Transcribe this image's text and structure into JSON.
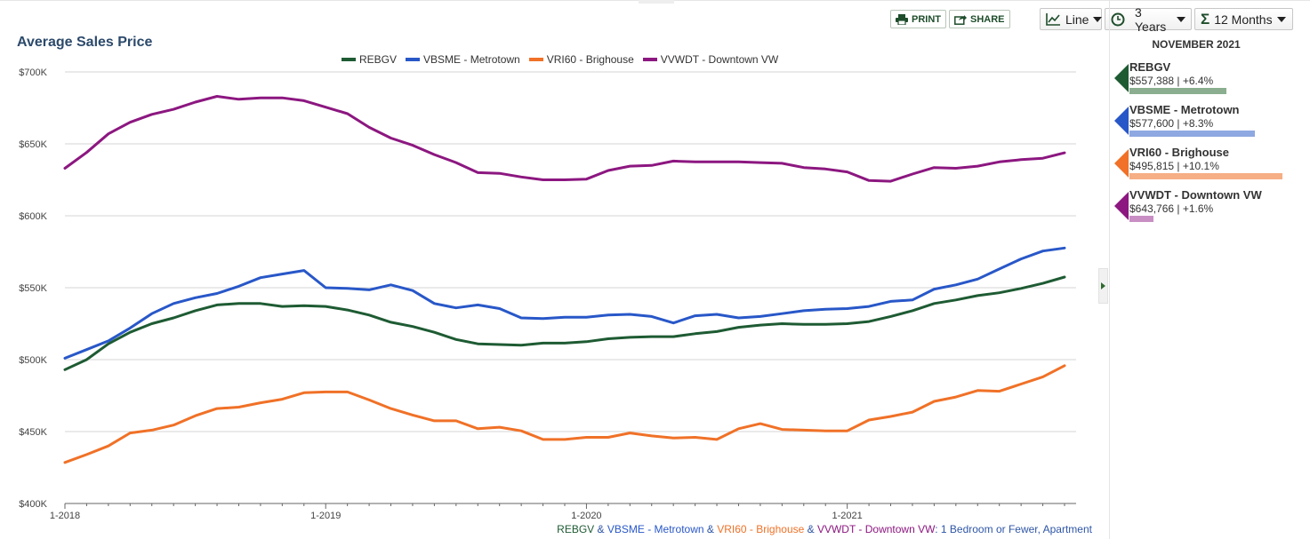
{
  "toolbar": {
    "print_label": "PRINT",
    "share_label": "SHARE",
    "chart_type_label": "Line",
    "period_label": "3 Years",
    "average_label": "12 Months"
  },
  "colors": {
    "REBGV": "#1e5b33",
    "VBSME": "#2857c8",
    "VRI60": "#f07127",
    "VVWDT": "#8c1780",
    "accent": "#1e4d2b",
    "title": "#2c4a6b",
    "footnote_blue": "#2f56a6"
  },
  "chart_data": {
    "type": "line",
    "title": "Average Sales Price",
    "x": [
      "1-2018",
      "2-2018",
      "3-2018",
      "4-2018",
      "5-2018",
      "6-2018",
      "7-2018",
      "8-2018",
      "9-2018",
      "10-2018",
      "11-2018",
      "12-2018",
      "1-2019",
      "2-2019",
      "3-2019",
      "4-2019",
      "5-2019",
      "6-2019",
      "7-2019",
      "8-2019",
      "9-2019",
      "10-2019",
      "11-2019",
      "12-2019",
      "1-2020",
      "2-2020",
      "3-2020",
      "4-2020",
      "5-2020",
      "6-2020",
      "7-2020",
      "8-2020",
      "9-2020",
      "10-2020",
      "11-2020",
      "12-2020",
      "1-2021",
      "2-2021",
      "3-2021",
      "4-2021",
      "5-2021",
      "6-2021",
      "7-2021",
      "8-2021",
      "9-2021",
      "10-2021",
      "11-2021"
    ],
    "x_tick_labels": [
      "1-2018",
      "1-2019",
      "1-2020",
      "1-2021"
    ],
    "ylim": [
      400000,
      700000
    ],
    "y_ticks": [
      400000,
      450000,
      500000,
      550000,
      600000,
      650000,
      700000
    ],
    "y_tick_labels": [
      "$400K",
      "$450K",
      "$500K",
      "$550K",
      "$600K",
      "$650K",
      "$700K"
    ],
    "grid": true,
    "legend_position": "top",
    "series": [
      {
        "name": "REBGV",
        "values": [
          493000,
          500000,
          511000,
          519000,
          525000,
          529000,
          534000,
          538000,
          539000,
          539000,
          537000,
          537500,
          537000,
          534500,
          531000,
          526000,
          523000,
          519000,
          514000,
          511000,
          510500,
          510000,
          511500,
          511500,
          512500,
          514500,
          515500,
          516000,
          516000,
          518000,
          519500,
          522500,
          524000,
          525000,
          524500,
          524500,
          525000,
          526500,
          530000,
          534000,
          539000,
          541500,
          544500,
          546500,
          549500,
          553000,
          557388
        ]
      },
      {
        "name": "VBSME - Metrotown",
        "values": [
          501000,
          507000,
          513000,
          522000,
          532000,
          539000,
          543000,
          546000,
          551000,
          557000,
          559500,
          562000,
          550000,
          549500,
          548500,
          552000,
          548000,
          539000,
          536000,
          538000,
          535500,
          529000,
          528500,
          529500,
          529500,
          531000,
          531500,
          530000,
          525500,
          530500,
          531500,
          529000,
          530000,
          532000,
          534000,
          535000,
          535500,
          537000,
          540500,
          541500,
          549000,
          552000,
          556000,
          563000,
          570000,
          575500,
          577600
        ]
      },
      {
        "name": "VRI60 - Brighouse",
        "values": [
          428500,
          434000,
          440000,
          449000,
          451000,
          454500,
          461000,
          466000,
          467000,
          470000,
          472500,
          477000,
          477500,
          477500,
          472000,
          466000,
          461500,
          457500,
          457500,
          452000,
          453000,
          450500,
          444500,
          444500,
          446000,
          446000,
          449000,
          447000,
          445500,
          446000,
          444500,
          452000,
          455500,
          451500,
          451000,
          450500,
          450500,
          458000,
          460500,
          463500,
          471000,
          474000,
          478500,
          478000,
          483000,
          488000,
          495815
        ]
      },
      {
        "name": "VVWDT - Downtown VW",
        "values": [
          633000,
          644000,
          657000,
          665000,
          670500,
          674000,
          679000,
          683000,
          681000,
          682000,
          682000,
          680000,
          675500,
          671000,
          661500,
          654000,
          649000,
          642500,
          637000,
          630000,
          629500,
          627000,
          625000,
          625000,
          625500,
          631500,
          634500,
          635000,
          638000,
          637500,
          637500,
          637500,
          637000,
          636500,
          633500,
          632500,
          630500,
          624500,
          624000,
          629000,
          633500,
          633000,
          634500,
          637500,
          639000,
          640000,
          643766
        ]
      }
    ]
  },
  "side_panel": {
    "date": "NOVEMBER 2021",
    "items": [
      {
        "name": "REBGV",
        "value": "$557,388 | +6.4%",
        "bar_color": "#8aae8f",
        "bar_fraction": 0.064
      },
      {
        "name": "VBSME - Metrotown",
        "value": "$577,600 | +8.3%",
        "bar_color": "#8ea8e2",
        "bar_fraction": 0.083
      },
      {
        "name": "VRI60 - Brighouse",
        "value": "$495,815 | +10.1%",
        "bar_color": "#f6ae85",
        "bar_fraction": 0.101
      },
      {
        "name": "VVWDT - Downtown VW",
        "value": "$643,766 | +1.6%",
        "bar_color": "#c98ec4",
        "bar_fraction": 0.016
      }
    ]
  },
  "footnote": {
    "s1": "REBGV",
    "amp": " & ",
    "s2": "VBSME - Metrotown",
    "s3": "VRI60 - Brighouse",
    "s4": "VVWDT - Downtown VW",
    "colon": ": ",
    "rest": "1 Bedroom or Fewer, Apartment"
  }
}
